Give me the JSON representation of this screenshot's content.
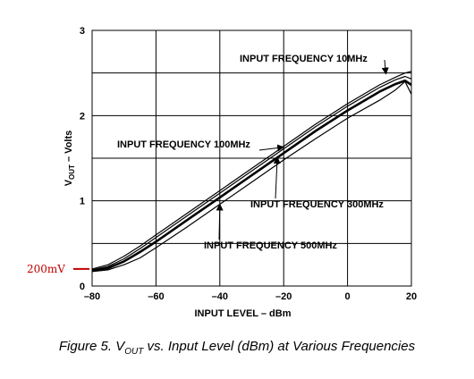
{
  "chart_data": {
    "type": "line",
    "xlabel": "INPUT LEVEL – dBm",
    "ylabel": "V_OUT – Volts",
    "xlim": [
      -80,
      20
    ],
    "ylim": [
      0,
      3
    ],
    "xticks": [
      -80,
      -60,
      -40,
      -20,
      0,
      20
    ],
    "yticks": [
      0,
      1,
      2,
      3
    ],
    "x_tick_labels": [
      "–80",
      "–60",
      "–40",
      "–20",
      "0",
      "20"
    ],
    "y_tick_labels": [
      "0",
      "1",
      "2",
      "3"
    ],
    "grid": true,
    "series": [
      {
        "name": "INPUT FREQUENCY 10MHz",
        "x": [
          -80,
          -75,
          -70,
          -65,
          -60,
          -50,
          -40,
          -30,
          -20,
          -10,
          0,
          10,
          15,
          18,
          20
        ],
        "y": [
          0.2,
          0.25,
          0.35,
          0.47,
          0.6,
          0.86,
          1.12,
          1.38,
          1.64,
          1.9,
          2.14,
          2.36,
          2.45,
          2.5,
          2.52
        ]
      },
      {
        "name": "INPUT FREQUENCY 100MHz",
        "x": [
          -80,
          -75,
          -70,
          -65,
          -60,
          -50,
          -40,
          -30,
          -20,
          -10,
          0,
          10,
          15,
          18,
          20
        ],
        "y": [
          0.19,
          0.23,
          0.32,
          0.44,
          0.57,
          0.83,
          1.09,
          1.35,
          1.61,
          1.87,
          2.11,
          2.33,
          2.42,
          2.46,
          2.43
        ]
      },
      {
        "name": "INPUT FREQUENCY 300MHz",
        "x": [
          -80,
          -75,
          -70,
          -65,
          -60,
          -50,
          -40,
          -30,
          -20,
          -10,
          0,
          10,
          15,
          18,
          20
        ],
        "y": [
          0.18,
          0.21,
          0.29,
          0.4,
          0.52,
          0.78,
          1.04,
          1.3,
          1.56,
          1.82,
          2.06,
          2.28,
          2.37,
          2.41,
          2.36
        ]
      },
      {
        "name": "INPUT FREQUENCY 500MHz",
        "x": [
          -80,
          -75,
          -70,
          -65,
          -60,
          -50,
          -40,
          -30,
          -20,
          -10,
          0,
          10,
          15,
          18,
          20
        ],
        "y": [
          0.17,
          0.19,
          0.25,
          0.33,
          0.45,
          0.7,
          0.96,
          1.22,
          1.48,
          1.73,
          1.97,
          2.18,
          2.3,
          2.4,
          2.25
        ]
      }
    ],
    "annotations": [
      {
        "text": "INPUT FREQUENCY 10MHz",
        "points_to": "INPUT FREQUENCY 10MHz"
      },
      {
        "text": "INPUT FREQUENCY 100MHz",
        "points_to": "INPUT FREQUENCY 100MHz"
      },
      {
        "text": "INPUT FREQUENCY 300MHz",
        "points_to": "INPUT FREQUENCY 300MHz"
      },
      {
        "text": "INPUT FREQUENCY 500MHz",
        "points_to": "INPUT FREQUENCY 500MHz"
      }
    ],
    "marker": {
      "text": "200mV",
      "y": 0.2,
      "color": "#c00000"
    },
    "caption": "Figure 5.  V_OUT vs. Input Level (dBm) at Various Frequencies",
    "line_color": "#000000",
    "grid_color": "#000000"
  }
}
